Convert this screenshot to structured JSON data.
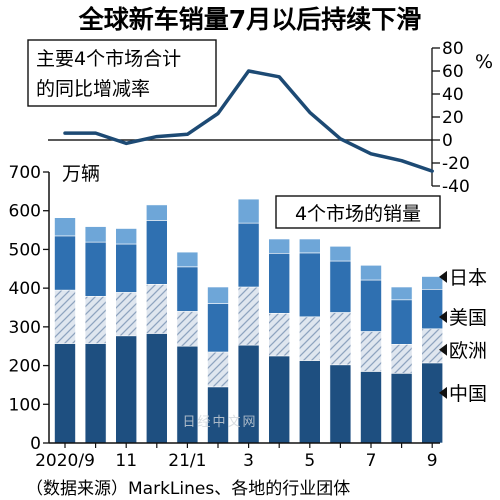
{
  "title": "全球新车销量7月以后持续下滑",
  "source": "（数据来源）MarkLines、各地的行业团体",
  "watermark": "日经中文网",
  "colors": {
    "china": "#1e4f80",
    "europe_fill": "#dfe6ef",
    "europe_hatch": "#8ea4bf",
    "usa": "#2f70b1",
    "japan": "#6ea6d8",
    "line": "#1d4a74"
  },
  "chart_data": [
    {
      "type": "line",
      "title": "主要4个市场合计的同比增减率",
      "title_lines": [
        "主要4个市场合计",
        "的同比增减率"
      ],
      "unit": "%",
      "x": [
        "2020/9",
        "2020/10",
        "2020/11",
        "2020/12",
        "2021/1",
        "2021/2",
        "2021/3",
        "2021/4",
        "2021/5",
        "2021/6",
        "2021/7",
        "2021/8",
        "2021/9"
      ],
      "values": [
        6,
        6,
        -3,
        3,
        5,
        23,
        60,
        55,
        24,
        1,
        -12,
        -18,
        -27
      ],
      "ylim": [
        -40,
        80
      ],
      "yticks": [
        80,
        60,
        40,
        20,
        0,
        -20,
        -40
      ],
      "zero_line": true
    },
    {
      "type": "bar",
      "stacked": true,
      "title": "4个市场的销量",
      "unit": "万辆",
      "categories": [
        "2020/9",
        "2020/10",
        "2020/11",
        "2020/12",
        "2021/1",
        "2021/2",
        "2021/3",
        "2021/4",
        "2021/5",
        "2021/6",
        "2021/7",
        "2021/8",
        "2021/9"
      ],
      "xtick_labels": [
        "2020/9",
        "",
        "11",
        "",
        "21/1",
        "",
        "3",
        "",
        "5",
        "",
        "7",
        "",
        "9"
      ],
      "series": [
        {
          "name": "中国",
          "values": [
            257,
            257,
            277,
            283,
            250,
            145,
            253,
            225,
            213,
            202,
            185,
            180,
            207
          ]
        },
        {
          "name": "欧洲",
          "values": [
            138,
            122,
            112,
            127,
            90,
            90,
            150,
            110,
            113,
            135,
            103,
            75,
            88
          ]
        },
        {
          "name": "美国",
          "values": [
            140,
            140,
            125,
            165,
            115,
            125,
            165,
            155,
            165,
            133,
            133,
            115,
            102
          ]
        },
        {
          "name": "日本",
          "values": [
            47,
            40,
            40,
            40,
            38,
            43,
            62,
            37,
            36,
            38,
            38,
            33,
            33
          ]
        }
      ],
      "ylim": [
        0,
        700
      ],
      "yticks": [
        0,
        100,
        200,
        300,
        400,
        500,
        600,
        700
      ],
      "grid": false,
      "legend_position": "right"
    }
  ]
}
